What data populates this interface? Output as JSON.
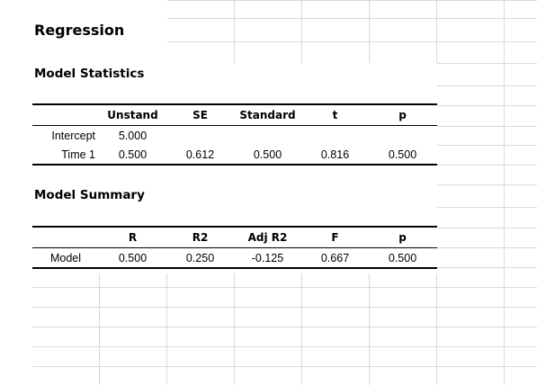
{
  "title": "Regression",
  "model_statistics": {
    "heading": "Model Statistics",
    "columns": [
      "Unstand",
      "SE",
      "Standard",
      "t",
      "p"
    ],
    "rows": [
      {
        "label": "Intercept",
        "values": [
          "5.000",
          "",
          "",
          "",
          ""
        ]
      },
      {
        "label": "Time 1",
        "values": [
          "0.500",
          "0.612",
          "0.500",
          "0.816",
          "0.500"
        ]
      }
    ]
  },
  "model_summary": {
    "heading": "Model Summary",
    "columns": [
      "R",
      "R2",
      "Adj R2",
      "F",
      "p"
    ],
    "rows": [
      {
        "label": "Model",
        "values": [
          "0.500",
          "0.250",
          "-0.125",
          "0.667",
          "0.500"
        ]
      }
    ]
  }
}
